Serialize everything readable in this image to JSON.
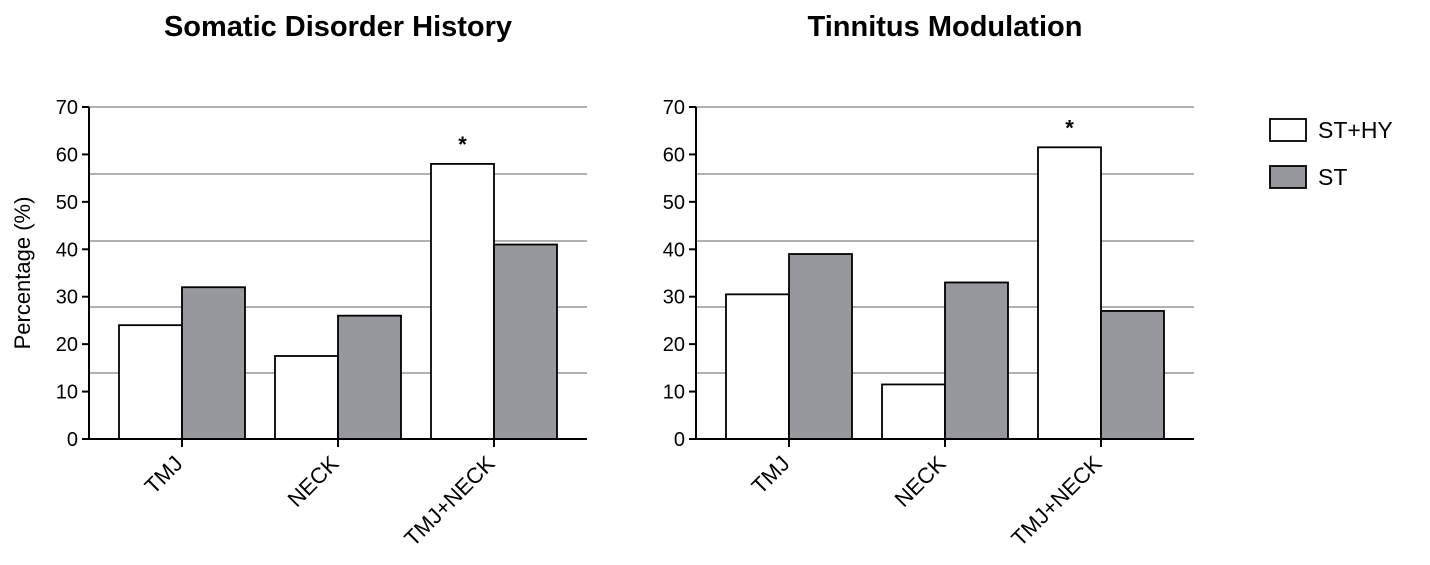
{
  "chart_data": [
    {
      "type": "bar",
      "title": "Somatic Disorder History",
      "ylabel": "Percentage (%)",
      "xlabel": "",
      "ylim": [
        0,
        70
      ],
      "yticks": [
        0,
        10,
        20,
        30,
        40,
        50,
        60,
        70
      ],
      "categories": [
        "TMJ",
        "NECK",
        "TMJ+NECK"
      ],
      "series": [
        {
          "name": "ST+HY",
          "values": [
            24,
            17.5,
            58
          ]
        },
        {
          "name": "ST",
          "values": [
            32,
            26,
            41
          ]
        }
      ],
      "annotations": [
        {
          "category": "TMJ+NECK",
          "text": "*"
        }
      ],
      "grid": true
    },
    {
      "type": "bar",
      "title": "Tinnitus Modulation",
      "ylabel": "",
      "xlabel": "",
      "ylim": [
        0,
        70
      ],
      "yticks": [
        0,
        10,
        20,
        30,
        40,
        50,
        60,
        70
      ],
      "categories": [
        "TMJ",
        "NECK",
        "TMJ+NECK"
      ],
      "series": [
        {
          "name": "ST+HY",
          "values": [
            30.5,
            11.5,
            61.5
          ]
        },
        {
          "name": "ST",
          "values": [
            39,
            33,
            27
          ]
        }
      ],
      "annotations": [
        {
          "category": "TMJ+NECK",
          "text": "*"
        }
      ],
      "grid": true
    }
  ],
  "legend": {
    "position": "right",
    "entries": [
      {
        "name": "ST+HY",
        "color": "#ffffff"
      },
      {
        "name": "ST",
        "color": "#97989c"
      }
    ]
  }
}
